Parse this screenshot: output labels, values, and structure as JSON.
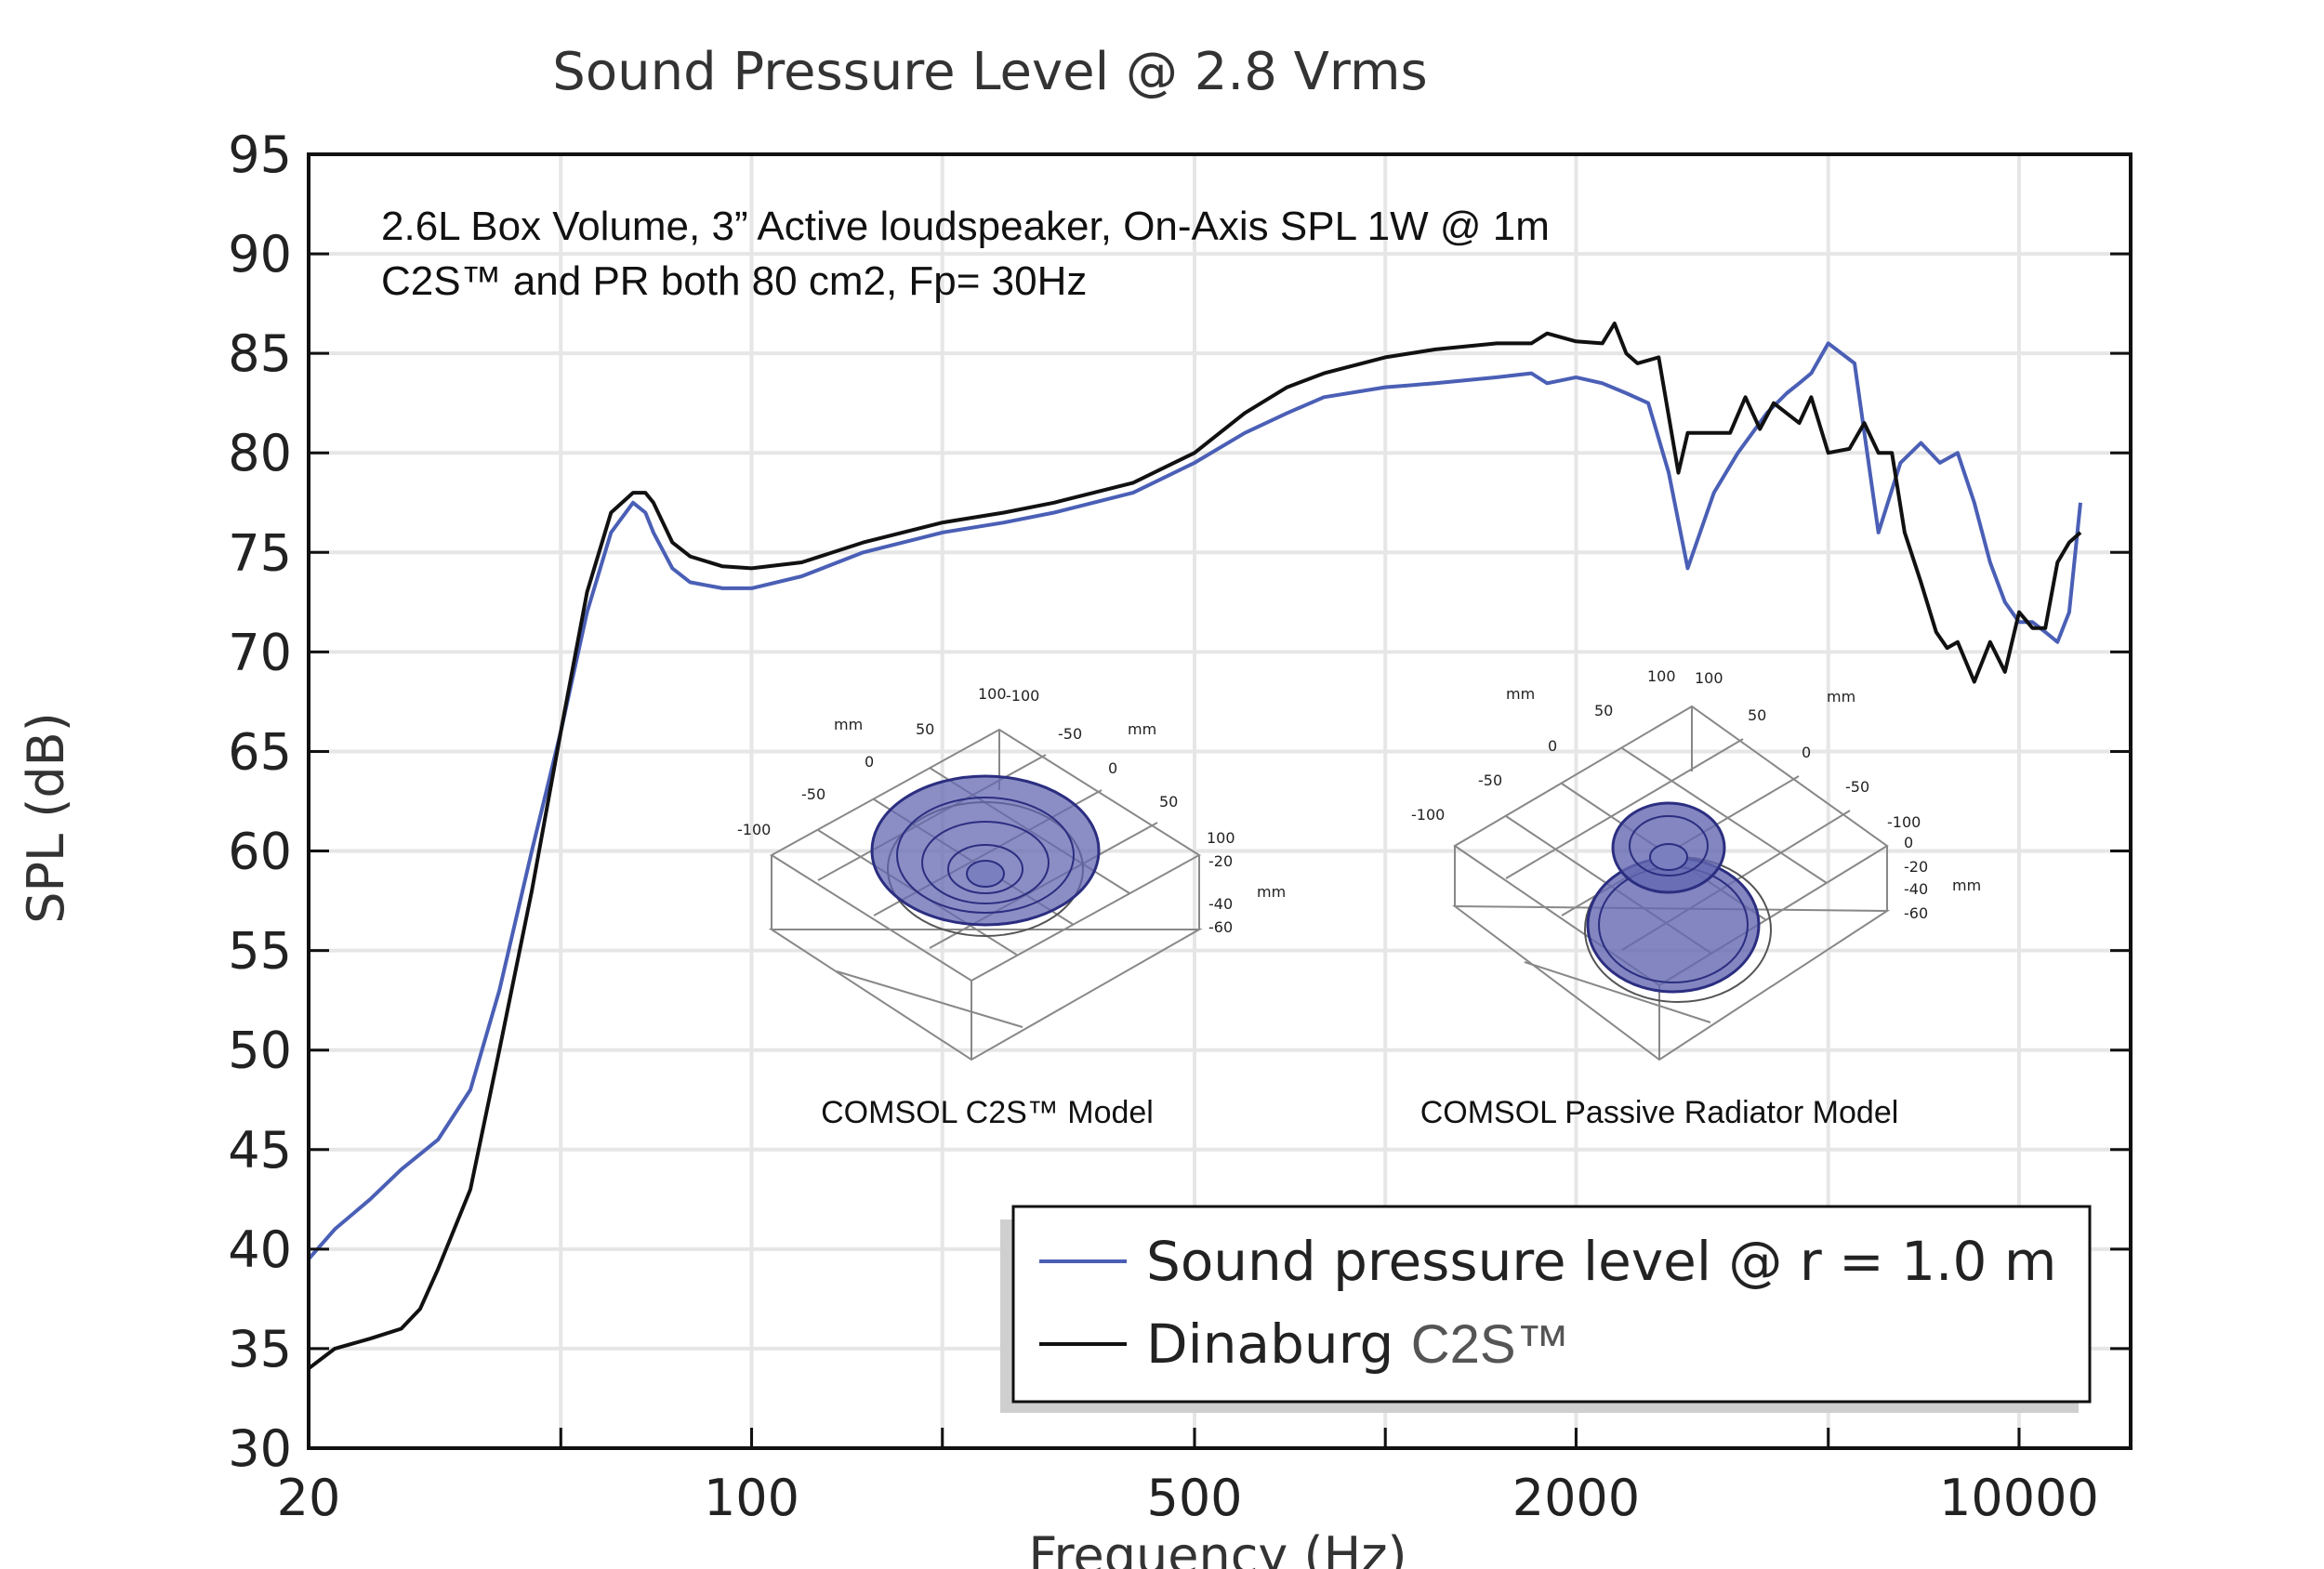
{
  "chart_data": {
    "type": "line",
    "title": "Sound Pressure Level @ 2.8 Vrms",
    "xlabel": "Frequency (Hz)",
    "ylabel": "SPL (dB)",
    "xscale": "log",
    "xlim": [
      20,
      15000
    ],
    "ylim": [
      30,
      95
    ],
    "grid": true,
    "xticks": [
      20,
      100,
      500,
      2000,
      10000
    ],
    "xtick_labels": [
      "20",
      "100",
      "500",
      "2000",
      "10000"
    ],
    "x_minor_grid": [
      50,
      200,
      1000,
      5000
    ],
    "yticks": [
      30,
      35,
      40,
      45,
      50,
      55,
      60,
      65,
      70,
      75,
      80,
      85,
      90,
      95
    ],
    "ytick_labels": [
      "30",
      "35",
      "40",
      "45",
      "50",
      "55",
      "60",
      "65",
      "70",
      "75",
      "80",
      "85",
      "90",
      "95"
    ],
    "annotations": [
      "2.6L Box Volume, 3” Active loudspeaker, On-Axis SPL 1W @ 1m",
      "C2S™ and PR both 80 cm2, Fp= 30Hz"
    ],
    "legend_position": "bottom-right",
    "series": [
      {
        "name": "Sound pressure level  @ r = 1.0 m",
        "color": "#4a5fb5",
        "x": [
          20,
          22,
          25,
          28,
          32,
          36,
          40,
          45,
          50,
          55,
          60,
          65,
          68,
          70,
          75,
          80,
          90,
          100,
          120,
          150,
          200,
          250,
          300,
          400,
          500,
          600,
          700,
          800,
          1000,
          1200,
          1500,
          1700,
          1800,
          2000,
          2200,
          2400,
          2600,
          2800,
          3000,
          3300,
          3600,
          4000,
          4300,
          4500,
          4700,
          5000,
          5500,
          6000,
          6500,
          7000,
          7500,
          8000,
          8500,
          9000,
          9500,
          10000,
          10500,
          11000,
          11500,
          12000,
          12500
        ],
        "y": [
          39.5,
          41,
          42.5,
          44,
          45.5,
          48,
          53,
          60,
          66,
          72,
          76,
          77.5,
          77,
          76,
          74.2,
          73.5,
          73.2,
          73.2,
          73.8,
          75,
          76,
          76.5,
          77,
          78,
          79.5,
          81,
          82,
          82.8,
          83.3,
          83.5,
          83.8,
          84,
          83.5,
          83.8,
          83.5,
          83,
          82.5,
          79,
          74.2,
          78,
          80,
          82,
          83,
          83.5,
          84,
          85.5,
          84.5,
          76,
          79.5,
          80.5,
          79.5,
          80,
          77.5,
          74.5,
          72.5,
          71.5,
          71.5,
          71,
          70.5,
          72,
          77.5
        ]
      },
      {
        "name": "Dinaburg C2S™",
        "color": "#111111",
        "x": [
          20,
          22,
          25,
          28,
          30,
          32,
          36,
          40,
          45,
          50,
          55,
          60,
          65,
          68,
          70,
          75,
          80,
          90,
          100,
          120,
          150,
          200,
          250,
          300,
          400,
          500,
          600,
          700,
          800,
          1000,
          1200,
          1500,
          1700,
          1800,
          2000,
          2200,
          2300,
          2400,
          2500,
          2700,
          2900,
          3000,
          3300,
          3500,
          3700,
          3900,
          4100,
          4500,
          4700,
          5000,
          5400,
          5700,
          6000,
          6300,
          6600,
          7000,
          7400,
          7700,
          8000,
          8500,
          9000,
          9500,
          10000,
          10500,
          11000,
          11500,
          12000,
          12500
        ],
        "y": [
          34,
          35,
          35.5,
          36,
          37,
          39,
          43,
          50,
          58,
          66,
          73,
          77,
          78,
          78,
          77.5,
          75.5,
          74.8,
          74.3,
          74.2,
          74.5,
          75.5,
          76.5,
          77,
          77.5,
          78.5,
          80,
          82,
          83.3,
          84,
          84.8,
          85.2,
          85.5,
          85.5,
          86,
          85.6,
          85.5,
          86.5,
          85,
          84.5,
          84.8,
          79,
          81,
          81,
          81,
          82.8,
          81.2,
          82.5,
          81.5,
          82.8,
          80,
          80.2,
          81.5,
          80,
          80,
          76,
          73.5,
          71,
          70.2,
          70.5,
          68.5,
          70.5,
          69,
          72,
          71.2,
          71.2,
          74.5,
          75.5,
          76
        ]
      }
    ]
  },
  "inset_models": [
    {
      "caption": "COMSOL C2S™ Model",
      "unit": "mm",
      "ticks_top_a": [
        "100",
        "50",
        "0",
        "-50",
        "-100"
      ],
      "ticks_top_b": [
        "-100",
        "-50",
        "0",
        "50",
        "100"
      ],
      "ticks_z": [
        "100",
        "-20",
        "-40",
        "-60"
      ]
    },
    {
      "caption": "COMSOL Passive Radiator Model",
      "unit": "mm",
      "ticks_top_a": [
        "100",
        "50",
        "0",
        "-50",
        "-100"
      ],
      "ticks_top_b": [
        "100",
        "50",
        "0",
        "-50",
        "-100"
      ],
      "ticks_z": [
        "0",
        "-20",
        "-40",
        "-60"
      ]
    }
  ],
  "legend": {
    "items": [
      {
        "label": "Sound pressure level  @ r = 1.0 m",
        "brand": "",
        "color": "#4a5fb5"
      },
      {
        "label": "Dinaburg ",
        "brand": "C2S™",
        "color": "#111111"
      }
    ]
  },
  "colors": {
    "grid": "#e6e6e6",
    "axis": "#111111",
    "model_fill": "#6468b0",
    "model_edge": "#2b2e80"
  }
}
